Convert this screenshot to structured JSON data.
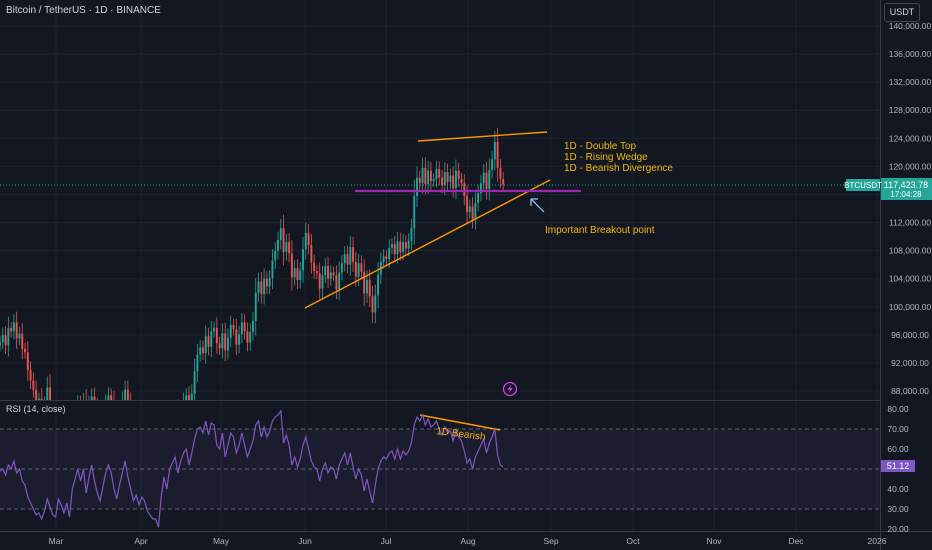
{
  "chart": {
    "title": "Bitcoin / TetherUS · 1D · BINANCE",
    "currency": "USDT",
    "symbol_tag": "BTCUSDT",
    "last_price": "117,423.78",
    "countdown": "17:04:28",
    "colors": {
      "up": "#26a69a",
      "down": "#ef5350",
      "background": "#131722",
      "annotation": "#f0b90b",
      "trendline": "#ff9800",
      "level": "#9c27b0",
      "rsi": "#7e57c2"
    }
  },
  "annotations": {
    "line1": "1D - Double Top",
    "line2": "1D - Rising Wedge",
    "line3": "1D - Bearish Divergence",
    "breakout": "Important Breakout point",
    "rsi_note": "1D Bearish"
  },
  "rsi_panel": {
    "title": "RSI (14, close)",
    "value": "51.12"
  },
  "chart_data": [
    {
      "type": "candlestick",
      "price_axis": {
        "labels": [
          "140,000.00",
          "136,000.00",
          "132,000.00",
          "128,000.00",
          "124,000.00",
          "120,000.00",
          "116,000.00",
          "112,000.00",
          "108,000.00",
          "104,000.00",
          "100,000.00",
          "96,000.00",
          "92,000.00",
          "88,000.00"
        ],
        "ylim": [
          86000,
          141500
        ]
      },
      "time_axis": {
        "labels": [
          "Mar",
          "Apr",
          "May",
          "Jun",
          "Jul",
          "Aug",
          "Sep",
          "Oct",
          "Nov",
          "Dec",
          "2026"
        ]
      },
      "closes": [
        95000,
        96000,
        94500,
        97000,
        96500,
        97800,
        95500,
        96200,
        94000,
        93500,
        91000,
        89500,
        88200,
        86500,
        86900,
        84500,
        86000,
        88500,
        85000,
        83200,
        81500,
        84000,
        82800,
        80500,
        82300,
        79000,
        83500,
        84800,
        86200,
        84900,
        86500,
        83500,
        85800,
        87200,
        85600,
        83800,
        82600,
        84400,
        86200,
        87400,
        86600,
        84600,
        83000,
        84800,
        86600,
        88200,
        86400,
        84400,
        82400,
        83200,
        81800,
        83000,
        82400,
        80700,
        79500,
        78600,
        78200,
        76500,
        79900,
        82600,
        81200,
        83800,
        84600,
        85500,
        83800,
        85200,
        86600,
        87400,
        85800,
        87600,
        90800,
        93200,
        94200,
        93400,
        95800,
        94300,
        96500,
        97000,
        94800,
        94100,
        96200,
        93800,
        95600,
        97400,
        96800,
        94600,
        96100,
        97800,
        96500,
        94900,
        96400,
        98000,
        102000,
        103600,
        101800,
        104000,
        102900,
        104100,
        106600,
        108000,
        109500,
        111200,
        107800,
        109200,
        107600,
        104200,
        105500,
        103800,
        105200,
        108200,
        110500,
        108800,
        106300,
        105100,
        104800,
        102600,
        104500,
        105800,
        104000,
        104900,
        104500,
        102500,
        104900,
        106200,
        107500,
        106000,
        108500,
        106400,
        104300,
        106200,
        105000,
        101900,
        103800,
        101500,
        99200,
        101600,
        104600,
        106400,
        107200,
        106800,
        108400,
        108900,
        107500,
        109300,
        107800,
        109200,
        108300,
        109400,
        111200,
        115800,
        118400,
        117600,
        119800,
        117500,
        119400,
        117900,
        118200,
        119600,
        118400,
        117300,
        119200,
        117800,
        118700,
        116900,
        119400,
        118200,
        117600,
        115800,
        113500,
        114300,
        112500,
        114800,
        116200,
        117600,
        119100,
        116800,
        119500,
        121000,
        123500,
        119800,
        118200,
        117423.78
      ],
      "trendlines": {
        "resistance": [
          [
            119800,
            "Jul 14"
          ],
          [
            123800,
            "Aug 31"
          ]
        ],
        "support": [
          [
            99500,
            "May 31"
          ],
          [
            119200,
            "Aug 31"
          ]
        ],
        "breakout_level": 117000
      }
    },
    {
      "type": "line",
      "name": "RSI (14, close)",
      "axis_labels": [
        "80.00",
        "70.00",
        "60.00",
        "50.00",
        "40.00",
        "30.00",
        "20.00"
      ],
      "ylim": [
        18,
        82
      ],
      "levels": [
        70,
        50,
        30
      ],
      "values": [
        49,
        50,
        47,
        52,
        50,
        54,
        48,
        50,
        44,
        42,
        36,
        33,
        30,
        27,
        28,
        25,
        29,
        35,
        31,
        27,
        26,
        35,
        32,
        28,
        33,
        26,
        40,
        45,
        50,
        44,
        50,
        38,
        46,
        52,
        44,
        38,
        34,
        41,
        48,
        52,
        48,
        40,
        35,
        42,
        48,
        54,
        46,
        40,
        34,
        37,
        32,
        36,
        34,
        29,
        27,
        25,
        25,
        21,
        36,
        46,
        40,
        50,
        53,
        56,
        48,
        54,
        58,
        60,
        52,
        58,
        65,
        70,
        71,
        68,
        74,
        67,
        73,
        72,
        62,
        60,
        68,
        56,
        62,
        68,
        66,
        58,
        62,
        68,
        62,
        56,
        60,
        64,
        72,
        74,
        66,
        71,
        66,
        69,
        74,
        76,
        77,
        79,
        63,
        67,
        62,
        52,
        56,
        51,
        55,
        62,
        66,
        60,
        54,
        51,
        50,
        44,
        50,
        53,
        48,
        51,
        50,
        45,
        52,
        55,
        58,
        52,
        58,
        51,
        45,
        50,
        47,
        39,
        45,
        39,
        33,
        42,
        50,
        54,
        56,
        55,
        58,
        59,
        55,
        60,
        55,
        59,
        57,
        59,
        63,
        72,
        76,
        74,
        77,
        72,
        75,
        71,
        72,
        74,
        70,
        67,
        71,
        68,
        69,
        64,
        69,
        66,
        64,
        59,
        53,
        55,
        50,
        56,
        59,
        62,
        65,
        58,
        63,
        66,
        70,
        57,
        52,
        51
      ]
    }
  ]
}
